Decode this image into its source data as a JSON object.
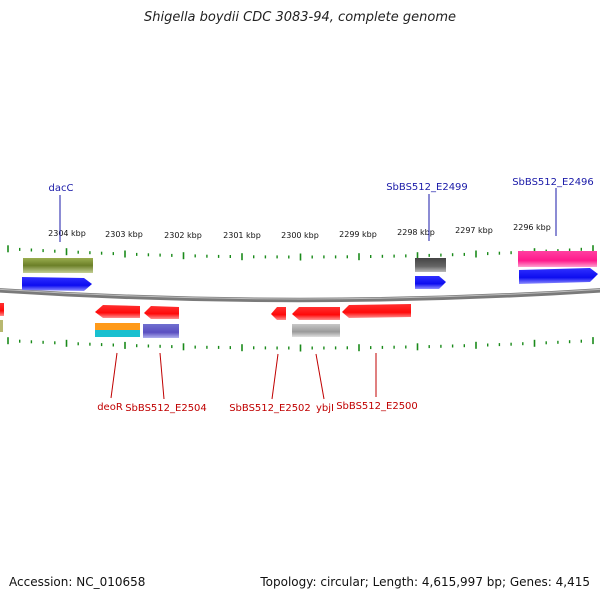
{
  "title": "Shigella boydii CDC 3083-94, complete genome",
  "accession": "Accession: NC_010658",
  "summary": "Topology: circular; Length: 4,615,997 bp; Genes: 4,415",
  "ticks": [
    "2304 kbp",
    "2303 kbp",
    "2302 kbp",
    "2301 kbp",
    "2300 kbp",
    "2299 kbp",
    "2298 kbp",
    "2297 kbp",
    "2296 kbp"
  ],
  "genes_top": [
    "dacC",
    "SbBS512_E2499",
    "SbBS512_E2496"
  ],
  "genes_bottom": [
    "deoR",
    "SbBS512_E2504",
    "SbBS512_E2502",
    "ybjI",
    "SbBS512_E2500"
  ],
  "colors": {
    "forward_label": "#1a1aa8",
    "reverse_label": "#c00000",
    "tick": "#1a8a1a",
    "backbone": "#888888",
    "red_cds": "#ff1a1a",
    "blue_cds": "#1414ff",
    "olive": "#6b8e23",
    "magenta": "#ff1a8c",
    "gray": "#666666"
  }
}
